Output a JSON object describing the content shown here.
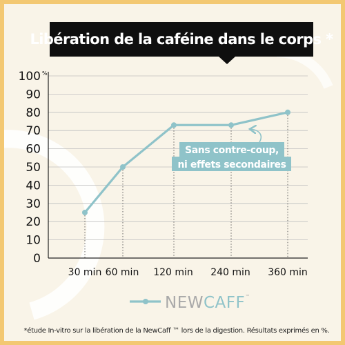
{
  "title": "Libération de la caféine dans le corps *",
  "chart_data": {
    "type": "line",
    "title": "Libération de la caféine dans le corps *",
    "categories": [
      "30 min",
      "60 min",
      "120 min",
      "240 min",
      "360 min"
    ],
    "series": [
      {
        "values": [
          25,
          50,
          73,
          73,
          80
        ]
      }
    ],
    "y_ticks": [
      "0",
      "10",
      "20",
      "30",
      "40",
      "50",
      "60",
      "70",
      "80",
      "90",
      "100"
    ],
    "y_unit": "%",
    "ylim": [
      0,
      100
    ],
    "grid": "horizontal",
    "annotation": {
      "line1": "Sans contre-coup,",
      "line2": "ni effets secondaires",
      "points_to": "240 min"
    },
    "legend": {
      "brand_part1": "NEW",
      "brand_part2": "CAFF",
      "trademark": "™",
      "placement": "bottom-center"
    },
    "colors": {
      "line": "#8fc3c9",
      "label_bg": "#8fc3c9",
      "label_text": "#ffffff",
      "grid": "#bfbfbf",
      "title_bg": "#0f0f0f",
      "border": "#f3c872",
      "background": "#f9f4e8"
    }
  },
  "footnote": "*étude In-vitro sur la libération de la NewCaff ™ lors de la digestion. Résultats exprimés en %."
}
